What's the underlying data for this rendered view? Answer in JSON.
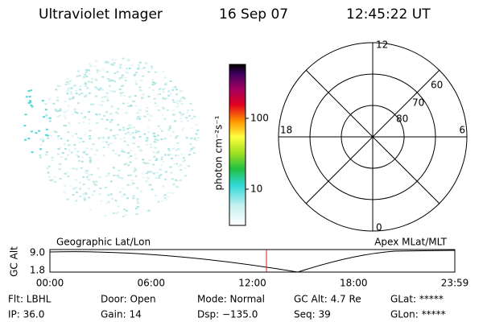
{
  "header": {
    "title": "Ultraviolet Imager",
    "date": "16 Sep 07",
    "time": "12:45:22 UT"
  },
  "colorbar": {
    "label": "photon cm⁻²s⁻¹",
    "ticks": [
      "100",
      "10"
    ]
  },
  "polar": {
    "hours": [
      "12",
      "18",
      "6",
      "0"
    ],
    "latitudes": [
      "60",
      "70",
      "80"
    ]
  },
  "timeline": {
    "left_title": "Geographic Lat/Lon",
    "right_title": "Apex MLat/MLT",
    "axis_label": "GC Alt",
    "y_labels": [
      "9.0",
      "1.8"
    ],
    "x_labels": [
      "00:00",
      "06:00",
      "12:00",
      "18:00",
      "23:59"
    ]
  },
  "info": {
    "rows": [
      [
        "Flt: LBHL",
        "Door: Open",
        "Mode: Normal",
        "GC Alt: 4.7 Re",
        "GLat: *****"
      ],
      [
        "IP: 36.0",
        "Gain: 14",
        "Dsp: −135.0",
        "Seq: 39",
        "GLon: *****"
      ]
    ]
  }
}
